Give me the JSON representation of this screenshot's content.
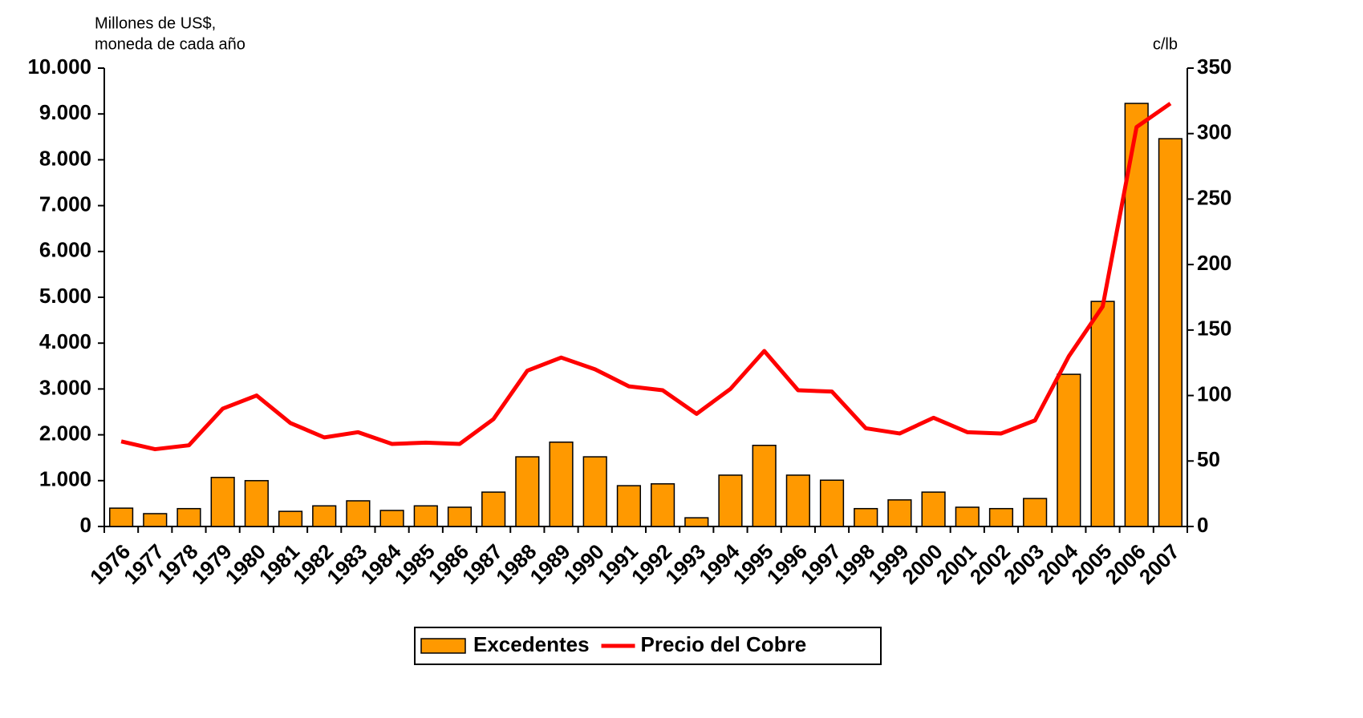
{
  "chart_data": {
    "type": "bar_line",
    "ylabel": [
      "Millones de US$,",
      "moneda de cada año"
    ],
    "y2label": "c/lb",
    "categories": [
      "1976",
      "1977",
      "1978",
      "1979",
      "1980",
      "1981",
      "1982",
      "1983",
      "1984",
      "1985",
      "1986",
      "1987",
      "1988",
      "1989",
      "1990",
      "1991",
      "1992",
      "1993",
      "1994",
      "1995",
      "1996",
      "1997",
      "1998",
      "1999",
      "2000",
      "2001",
      "2002",
      "2003",
      "2004",
      "2005",
      "2006",
      "2007"
    ],
    "series": [
      {
        "name": "Excedentes",
        "type": "bar",
        "color": "#FF9900",
        "values": [
          400,
          280,
          390,
          1070,
          1000,
          330,
          450,
          560,
          350,
          450,
          420,
          750,
          1520,
          1840,
          1520,
          890,
          930,
          190,
          1120,
          1770,
          1120,
          1010,
          390,
          580,
          750,
          420,
          390,
          610,
          3320,
          4910,
          9230,
          8460
        ]
      },
      {
        "name": "Precio del Cobre",
        "type": "line",
        "axis": "y2",
        "color": "#FF0000",
        "values": [
          65,
          59,
          62,
          90,
          100,
          79,
          68,
          72,
          63,
          64,
          63,
          82,
          119,
          129,
          120,
          107,
          104,
          86,
          105,
          134,
          104,
          103,
          75,
          71,
          83,
          72,
          71,
          81,
          130,
          168,
          305,
          323
        ]
      }
    ],
    "ylim": [
      0,
      10000
    ],
    "yticks": [
      0,
      {
        "value": 1000,
        "label": "1.000"
      },
      {
        "value": 2000,
        "label": "2.000"
      },
      {
        "value": 3000,
        "label": "3.000"
      },
      {
        "value": 4000,
        "label": "4.000"
      },
      {
        "value": 5000,
        "label": "5.000"
      },
      {
        "value": 6000,
        "label": "6.000"
      },
      {
        "value": 7000,
        "label": "7.000"
      },
      {
        "value": 8000,
        "label": "8.000"
      },
      {
        "value": 9000,
        "label": "9.000"
      },
      {
        "value": 10000,
        "label": "10.000"
      }
    ],
    "y2lim": [
      0,
      350
    ],
    "y2ticks": [
      0,
      50,
      100,
      150,
      200,
      250,
      300,
      350
    ],
    "legend": "bottom"
  }
}
